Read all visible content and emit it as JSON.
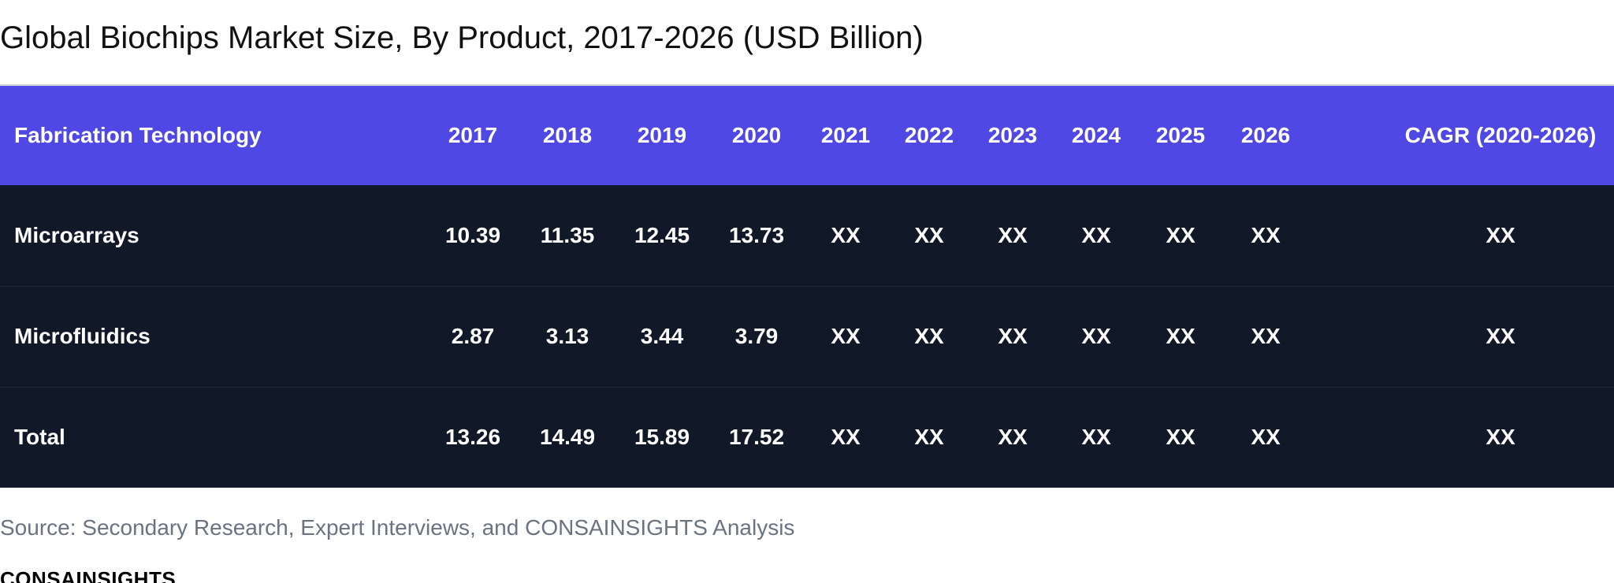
{
  "title": "Global Biochips Market Size, By Product, 2017-2026 (USD Billion)",
  "chart_data": {
    "type": "table",
    "title": "Global Biochips Market Size, By Product, 2017-2026 (USD Billion)",
    "columns": [
      "Fabrication Technology",
      "2017",
      "2018",
      "2019",
      "2020",
      "2021",
      "2022",
      "2023",
      "2024",
      "2025",
      "2026",
      "CAGR (2020-2026)"
    ],
    "rows": [
      [
        "Microarrays",
        "10.39",
        "11.35",
        "12.45",
        "13.73",
        "XX",
        "XX",
        "XX",
        "XX",
        "XX",
        "XX",
        "XX"
      ],
      [
        "Microfluidics",
        "2.87",
        "3.13",
        "3.44",
        "3.79",
        "XX",
        "XX",
        "XX",
        "XX",
        "XX",
        "XX",
        "XX"
      ],
      [
        "Total",
        "13.26",
        "14.49",
        "15.89",
        "17.52",
        "XX",
        "XX",
        "XX",
        "XX",
        "XX",
        "XX",
        "XX"
      ]
    ]
  },
  "source": "Source: Secondary Research, Expert Interviews, and CONSAINSIGHTS Analysis",
  "brand": "CONSAINSIGHTS",
  "colors": {
    "header_bg": "#5048e5",
    "row_bg": "#111827",
    "text": "#ffffff",
    "source_text": "#6b7280"
  }
}
